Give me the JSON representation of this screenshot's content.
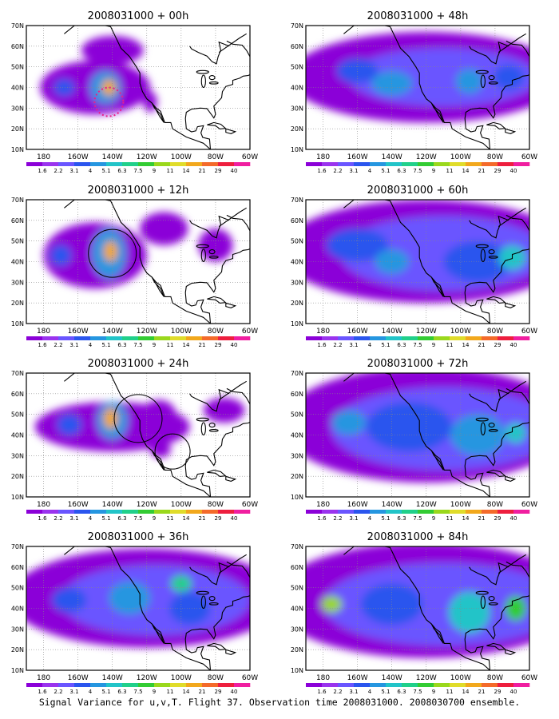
{
  "figure": {
    "caption": "Signal Variance for u,v,T. Flight 37. Observation time 2008031000. 2008030700 ensemble."
  },
  "map_axes": {
    "lon_labels": [
      "180",
      "160W",
      "140W",
      "120W",
      "100W",
      "80W",
      "60W"
    ],
    "lat_labels": [
      "70N",
      "60N",
      "50N",
      "40N",
      "30N",
      "20N",
      "10N"
    ],
    "lon_range": [
      -190,
      -60
    ],
    "lat_range": [
      10,
      70
    ]
  },
  "colorbar": {
    "labels": [
      "1.6",
      "2.2",
      "3.1",
      "4",
      "5.1",
      "6.3",
      "7.5",
      "9",
      "11",
      "14",
      "21",
      "29",
      "40"
    ],
    "colors": [
      "#8b00d8",
      "#9a33ee",
      "#6a55ff",
      "#2a55ee",
      "#2596e0",
      "#22c4c8",
      "#20d08a",
      "#33cc33",
      "#9ad81c",
      "#e0dc2a",
      "#f2a81c",
      "#f46a2a",
      "#ee1e3e",
      "#f01ea0"
    ]
  },
  "panels": [
    {
      "title": "2008031000 + 00h"
    },
    {
      "title": "2008031000 + 48h"
    },
    {
      "title": "2008031000 + 12h"
    },
    {
      "title": "2008031000 + 60h"
    },
    {
      "title": "2008031000 + 24h"
    },
    {
      "title": "2008031000 + 72h"
    },
    {
      "title": "2008031000 + 36h"
    },
    {
      "title": "2008031000 + 84h"
    }
  ]
}
